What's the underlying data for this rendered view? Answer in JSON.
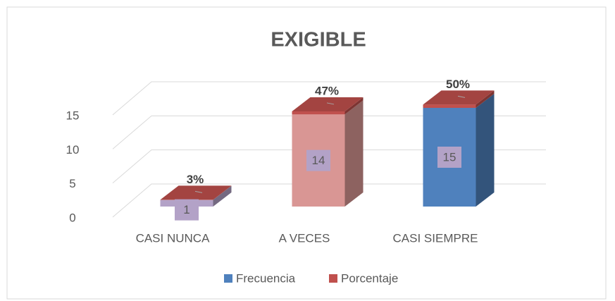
{
  "chart_data": {
    "type": "bar3d",
    "title": "EXIGIBLE",
    "categories": [
      "CASI NUNCA",
      "A VECES",
      "CASI SIEMPRE"
    ],
    "series": [
      {
        "name": "Frecuencia",
        "color": "#4f81bd",
        "colors": [
          "#b3a2c7",
          "#d99694",
          "#4f81bd"
        ],
        "values": [
          1,
          14,
          15
        ]
      },
      {
        "name": "Porcentaje",
        "color": "#c0504d",
        "values": [
          0.03,
          0.47,
          0.5
        ],
        "value_labels": [
          "3%",
          "47%",
          "50%"
        ]
      }
    ],
    "ylim": [
      0,
      15
    ],
    "yticks": [
      0,
      5,
      10,
      15
    ],
    "grid": true,
    "legend": "bottom",
    "stacked": true
  }
}
